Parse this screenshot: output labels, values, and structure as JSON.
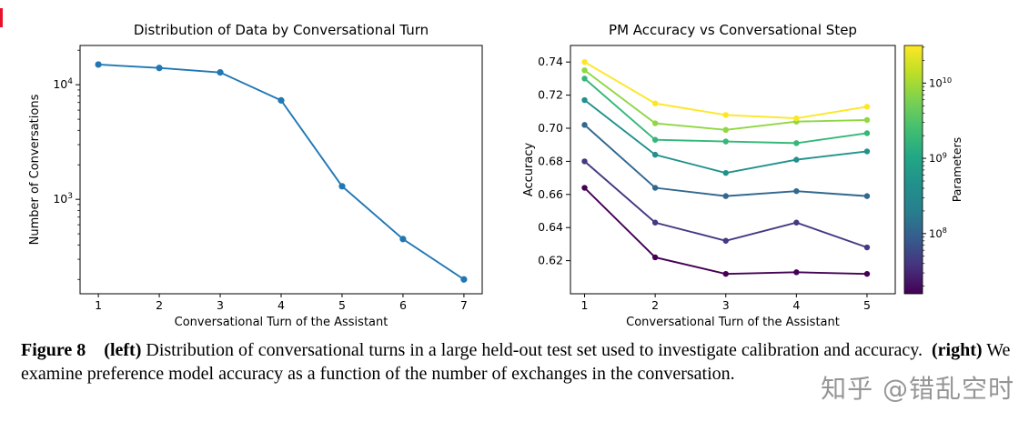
{
  "figure": {
    "caption_segments": [
      {
        "text": "Figure 8",
        "bold": true
      },
      {
        "text": "    ",
        "bold": false
      },
      {
        "text": "(left)",
        "bold": true
      },
      {
        "text": " Distribution of conversational turns in a large held-out test set used to investigate calibration and accuracy.  ",
        "bold": false
      },
      {
        "text": "(right)",
        "bold": true
      },
      {
        "text": " We examine preference model accuracy as a function of the number of exchanges in the conversation.",
        "bold": false
      }
    ]
  },
  "watermark": {
    "text": "知乎 @错乱空时"
  },
  "chart_data": [
    {
      "id": "left",
      "type": "line",
      "title": "Distribution of Data by Conversational Turn",
      "xlabel": "Conversational Turn of the Assistant",
      "ylabel": "Number of Conversations",
      "x": [
        1,
        2,
        3,
        4,
        5,
        6,
        7
      ],
      "values": [
        15000,
        14000,
        12800,
        7300,
        1300,
        450,
        200
      ],
      "color": "#2077b4",
      "yscale": "log",
      "xlim": [
        0.7,
        7.3
      ],
      "ylim": [
        150,
        22000
      ],
      "xticks": [
        1,
        2,
        3,
        4,
        5,
        6,
        7
      ],
      "yticks": [
        1000,
        10000
      ],
      "grid": false,
      "legend": "none"
    },
    {
      "id": "right",
      "type": "line",
      "title": "PM Accuracy vs Conversational Step",
      "xlabel": "Conversational Turn of the Assistant",
      "ylabel": "Accuracy",
      "x": [
        1,
        2,
        3,
        4,
        5
      ],
      "series": [
        {
          "color": "#440154",
          "values": [
            0.664,
            0.622,
            0.612,
            0.613,
            0.612
          ]
        },
        {
          "color": "#443983",
          "values": [
            0.68,
            0.643,
            0.632,
            0.643,
            0.628
          ]
        },
        {
          "color": "#31688e",
          "values": [
            0.702,
            0.664,
            0.659,
            0.662,
            0.659
          ]
        },
        {
          "color": "#21918c",
          "values": [
            0.717,
            0.684,
            0.673,
            0.681,
            0.686
          ]
        },
        {
          "color": "#35b779",
          "values": [
            0.73,
            0.693,
            0.692,
            0.691,
            0.697
          ]
        },
        {
          "color": "#90d743",
          "values": [
            0.735,
            0.703,
            0.699,
            0.704,
            0.705
          ]
        },
        {
          "color": "#fde725",
          "values": [
            0.74,
            0.715,
            0.708,
            0.706,
            0.713
          ]
        }
      ],
      "yscale": "linear",
      "xlim": [
        0.8,
        5.4
      ],
      "ylim": [
        0.6,
        0.75
      ],
      "xticks": [
        1,
        2,
        3,
        4,
        5
      ],
      "yticks": [
        0.62,
        0.64,
        0.66,
        0.68,
        0.7,
        0.72,
        0.74
      ],
      "grid": false,
      "legend": "colorbar",
      "colorbar": {
        "label": "Parameters",
        "log_range": [
          7.2,
          10.5
        ],
        "ticks": [
          {
            "value": 100000000,
            "label": "10^8"
          },
          {
            "value": 1000000000,
            "label": "10^9"
          },
          {
            "value": 10000000000,
            "label": "10^10"
          }
        ],
        "gradient": [
          "#440154",
          "#46327e",
          "#365c8d",
          "#277f8e",
          "#21918c",
          "#22a884",
          "#44bf70",
          "#7ad151",
          "#bddf26",
          "#fde725"
        ]
      }
    }
  ]
}
